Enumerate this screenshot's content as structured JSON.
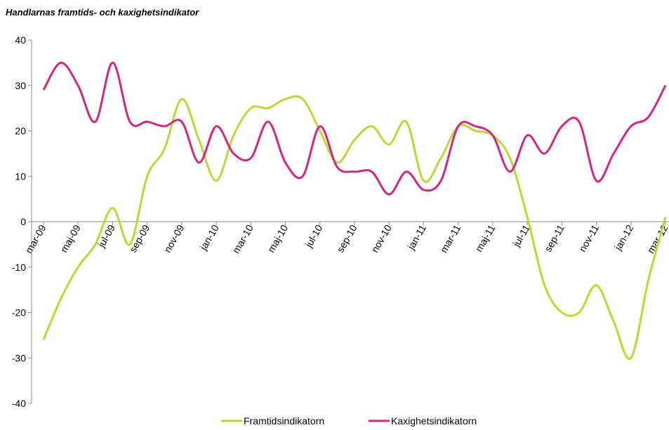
{
  "chart_data": {
    "type": "line",
    "title": "Handlarnas framtids- och kaxighetsindikator",
    "categories": [
      "mar-09",
      null,
      "maj-09",
      null,
      "jul-09",
      null,
      "sep-09",
      null,
      "nov-09",
      null,
      "jan-10",
      null,
      "mar-10",
      null,
      "maj-10",
      null,
      "jul-10",
      null,
      "sep-10",
      null,
      "nov-10",
      null,
      "jan-11",
      null,
      "mar-11",
      null,
      "maj-11",
      null,
      "jul-11",
      null,
      "sep-11",
      null,
      "nov-11",
      null,
      "jan-12",
      null,
      "mar-12"
    ],
    "series": [
      {
        "name": "Framtidsindikatorn",
        "color": "#bfd730",
        "values": [
          -26,
          -17,
          -10,
          -5,
          3,
          -5,
          10,
          16,
          27,
          18,
          9,
          19,
          25,
          25,
          27,
          27,
          20,
          13,
          18,
          21,
          17,
          22,
          9,
          14,
          21,
          20,
          19,
          14,
          1,
          -14,
          -20,
          -20,
          -14,
          -22,
          -30,
          -13,
          1
        ]
      },
      {
        "name": "Kaxighetsindikatorn",
        "color": "#d6257f",
        "values": [
          29,
          35,
          30,
          22,
          35,
          22,
          22,
          21,
          22,
          13,
          21,
          15,
          14,
          22,
          13,
          10,
          21,
          12,
          11,
          11,
          6,
          11,
          7,
          9,
          21,
          21,
          19,
          11,
          19,
          15,
          21,
          22,
          9,
          15,
          21,
          23,
          30
        ]
      }
    ],
    "ylim": [
      -40,
      40
    ],
    "yticks": [
      -40,
      -30,
      -20,
      -10,
      0,
      10,
      20,
      30,
      40
    ],
    "legend": "bottom"
  }
}
